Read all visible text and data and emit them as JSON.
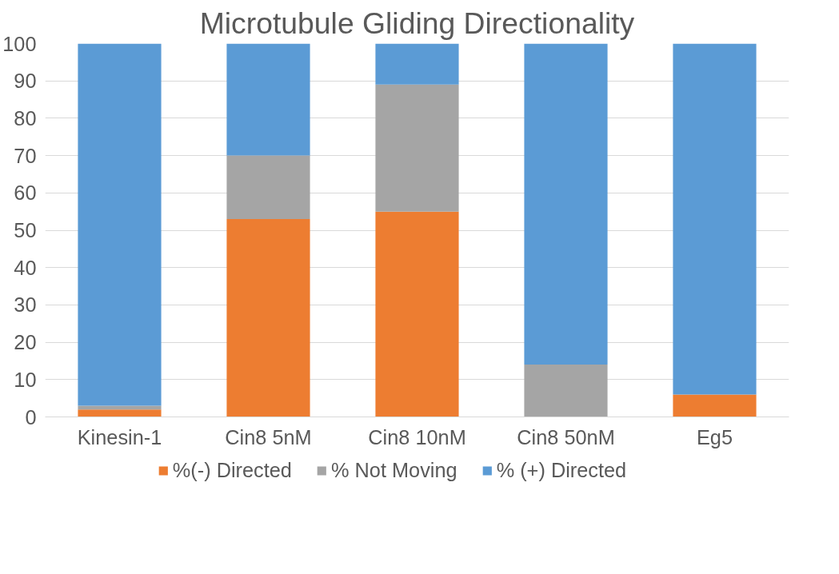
{
  "chart_data": {
    "type": "bar",
    "title": "Microtubule Gliding Directionality",
    "categories": [
      "Kinesin-1",
      "Cin8 5nM",
      "Cin8 10nM",
      "Cin8 50nM",
      "Eg5"
    ],
    "stacked": true,
    "series": [
      {
        "name": "%(-) Directed",
        "color": "#ed7d31",
        "values": [
          2,
          53,
          55,
          0,
          6
        ]
      },
      {
        "name": "% Not Moving",
        "color": "#a5a5a5",
        "values": [
          1,
          17,
          34,
          14,
          0
        ]
      },
      {
        "name": "% (+) Directed",
        "color": "#5b9bd5",
        "values": [
          97,
          30,
          11,
          86,
          94
        ]
      }
    ],
    "ylim": [
      0,
      100
    ],
    "yticks": [
      0,
      10,
      20,
      30,
      40,
      50,
      60,
      70,
      80,
      90,
      100
    ],
    "grid": "y",
    "legend": "bottom"
  }
}
